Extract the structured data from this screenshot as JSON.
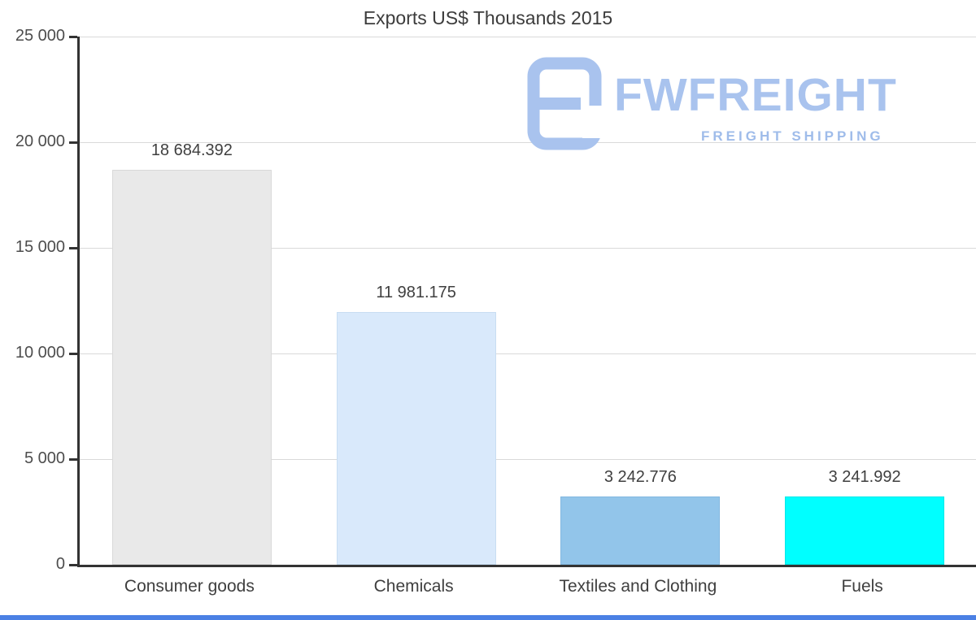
{
  "chart_data": {
    "type": "bar",
    "title": "Exports US$ Thousands 2015",
    "categories": [
      "Consumer goods",
      "Chemicals",
      "Textiles and Clothing",
      "Fuels"
    ],
    "values": [
      18684.392,
      11981.175,
      3242.776,
      3241.992
    ],
    "value_labels": [
      "18 684.392",
      "11 981.175",
      "3 242.776",
      "3 241.992"
    ],
    "bar_colors": [
      "#e9e9e9",
      "#d9e9fb",
      "#92c5ea",
      "#00ffff"
    ],
    "bar_border_colors": [
      "#d9d9d9",
      "#c8ddf2",
      "#83b8e0",
      "#00e8e8"
    ],
    "xlabel": "",
    "ylabel": "",
    "ylim": [
      0,
      25000
    ],
    "ytick_interval": 5000,
    "ytick_labels": [
      "0",
      "5 000",
      "10 000",
      "15 000",
      "20 000",
      "25 000"
    ],
    "grid": true,
    "legend": "none"
  },
  "watermark": {
    "brand": "FWFREIGHT",
    "tagline": "FREIGHT SHIPPING",
    "brand_color": "#a9c3ee"
  }
}
